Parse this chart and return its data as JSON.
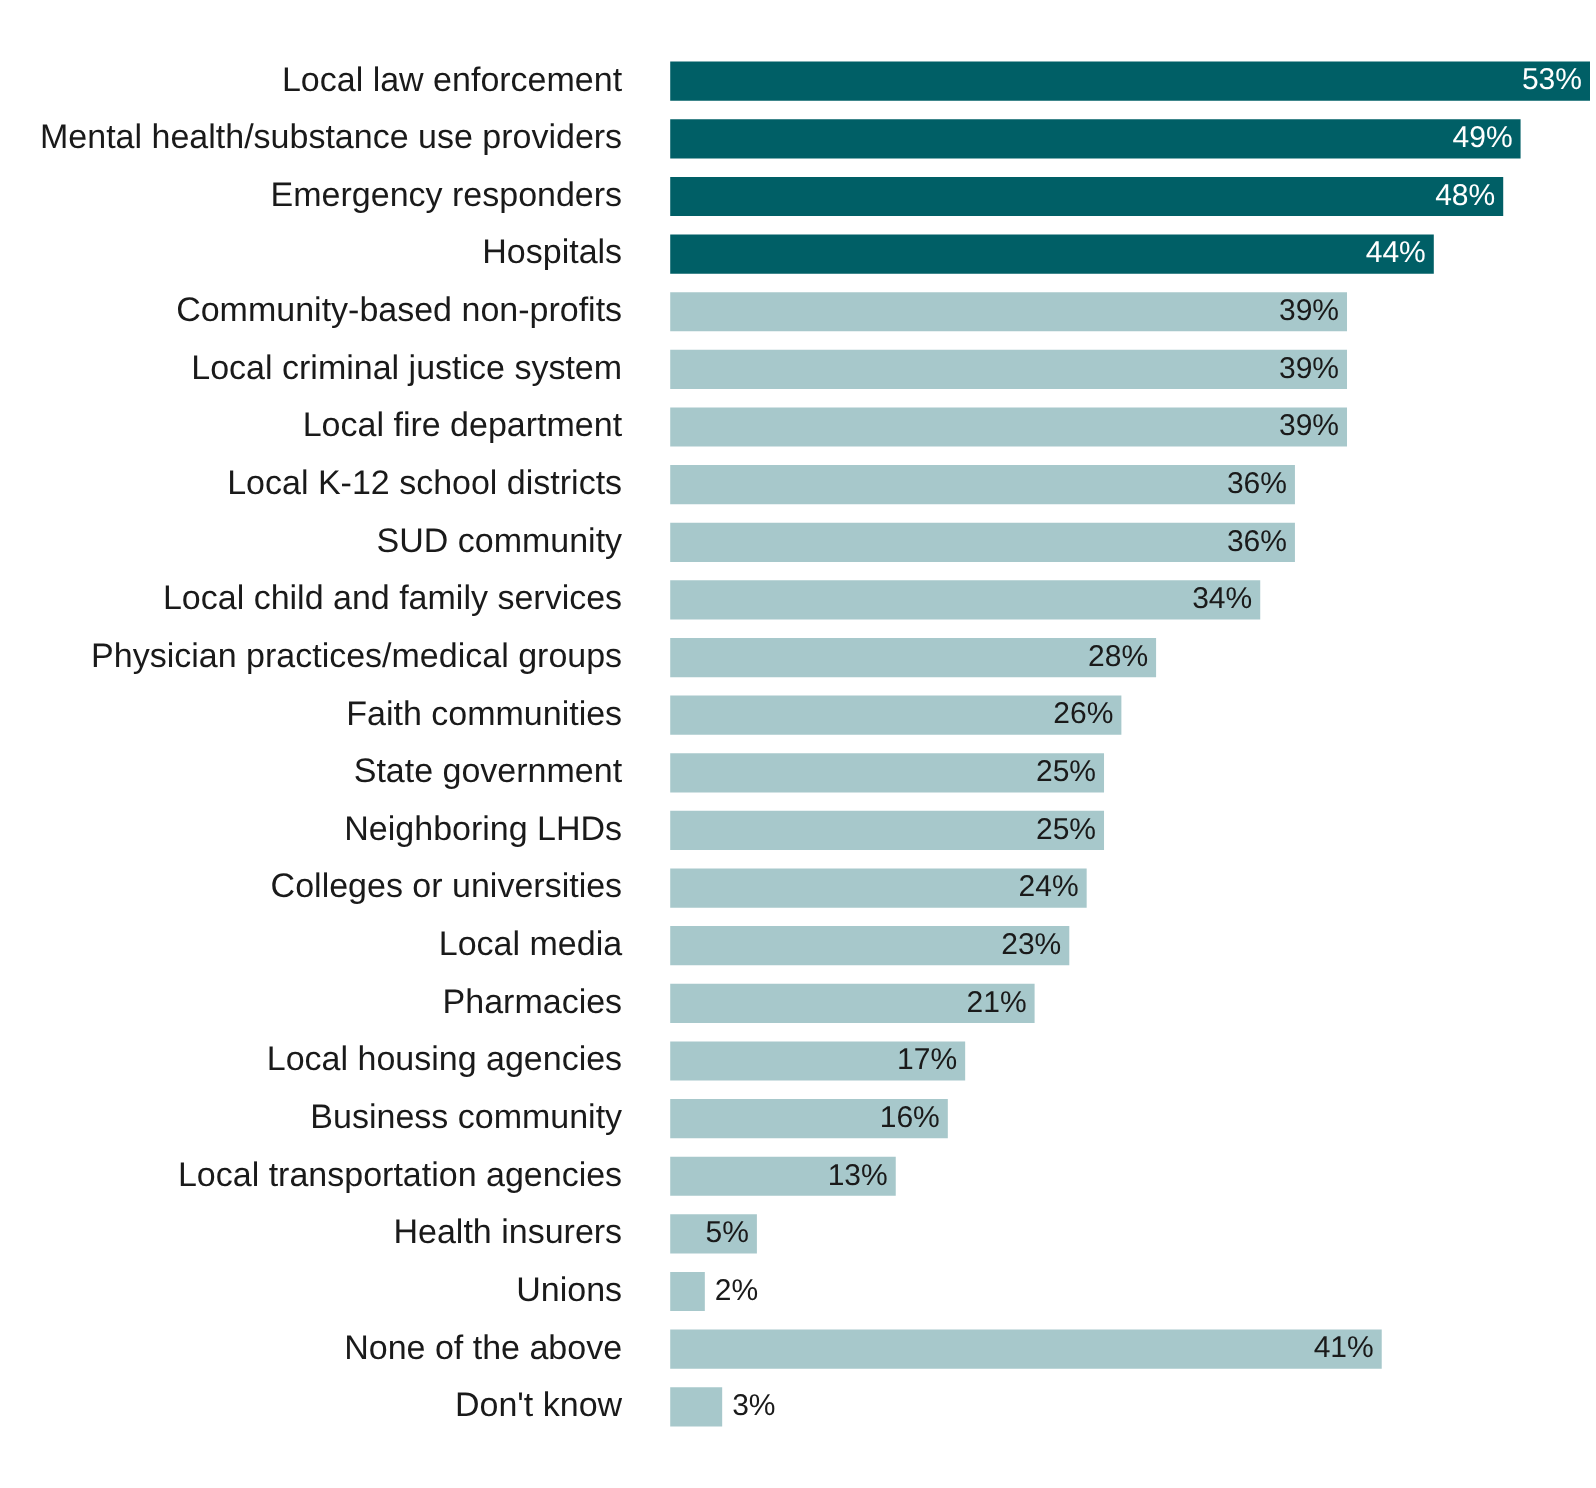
{
  "chart_data": {
    "type": "bar",
    "orientation": "horizontal",
    "categories": [
      "Local law enforcement",
      "Mental health/substance use providers",
      "Emergency responders",
      "Hospitals",
      "Community-based non-profits",
      "Local criminal justice system",
      "Local fire department",
      "Local K-12 school districts",
      "SUD community",
      "Local child and family services",
      "Physician practices/medical groups",
      "Faith communities",
      "State government",
      "Neighboring LHDs",
      "Colleges or universities",
      "Local media",
      "Pharmacies",
      "Local housing agencies",
      "Business community",
      "Local transportation agencies",
      "Health insurers",
      "Unions",
      "None of the above",
      "Don't know"
    ],
    "values": [
      53,
      49,
      48,
      44,
      39,
      39,
      39,
      36,
      36,
      34,
      28,
      26,
      25,
      25,
      24,
      23,
      21,
      17,
      16,
      13,
      5,
      2,
      41,
      3
    ],
    "value_labels": [
      "53%",
      "49%",
      "48%",
      "44%",
      "39%",
      "39%",
      "39%",
      "36%",
      "36%",
      "34%",
      "28%",
      "26%",
      "25%",
      "25%",
      "24%",
      "23%",
      "21%",
      "17%",
      "16%",
      "13%",
      "5%",
      "2%",
      "41%",
      "3%"
    ],
    "colors": [
      "#005f66",
      "#005f66",
      "#005f66",
      "#005f66",
      "#a7c8cb",
      "#a7c8cb",
      "#a7c8cb",
      "#a7c8cb",
      "#a7c8cb",
      "#a7c8cb",
      "#a7c8cb",
      "#a7c8cb",
      "#a7c8cb",
      "#a7c8cb",
      "#a7c8cb",
      "#a7c8cb",
      "#a7c8cb",
      "#a7c8cb",
      "#a7c8cb",
      "#a7c8cb",
      "#a7c8cb",
      "#a7c8cb",
      "#a7c8cb",
      "#a7c8cb"
    ],
    "grid": false,
    "legend": false
  }
}
